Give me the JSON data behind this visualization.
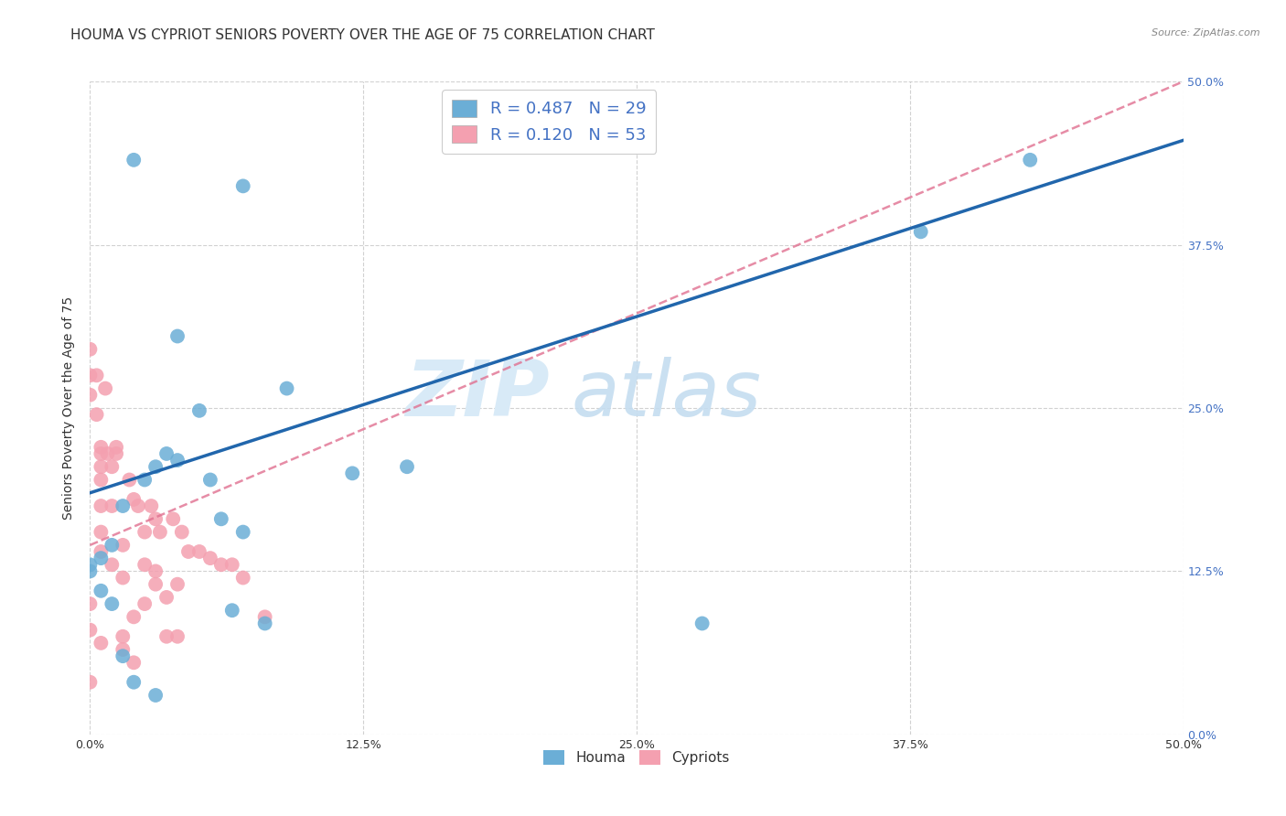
{
  "title": "HOUMA VS CYPRIOT SENIORS POVERTY OVER THE AGE OF 75 CORRELATION CHART",
  "source": "Source: ZipAtlas.com",
  "ylabel": "Seniors Poverty Over the Age of 75",
  "xlim": [
    0,
    0.5
  ],
  "ylim": [
    0,
    0.5
  ],
  "xticks": [
    0.0,
    0.125,
    0.25,
    0.375,
    0.5
  ],
  "yticks": [
    0.0,
    0.125,
    0.25,
    0.375,
    0.5
  ],
  "xtick_labels": [
    "0.0%",
    "12.5%",
    "25.0%",
    "37.5%",
    "50.0%"
  ],
  "ytick_labels": [
    "0.0%",
    "12.5%",
    "25.0%",
    "37.5%",
    "50.0%"
  ],
  "houma_color": "#6baed6",
  "cypriot_color": "#f4a0b0",
  "houma_line_color": "#2166ac",
  "cypriot_line_color": "#e07090",
  "houma_R": "0.487",
  "houma_N": "29",
  "cypriot_R": "0.120",
  "cypriot_N": "53",
  "houma_trend_x0": 0.0,
  "houma_trend_y0": 0.185,
  "houma_trend_x1": 0.5,
  "houma_trend_y1": 0.455,
  "cypriot_trend_x0": 0.0,
  "cypriot_trend_y0": 0.145,
  "cypriot_trend_x1": 0.5,
  "cypriot_trend_y1": 0.5,
  "houma_x": [
    0.02,
    0.07,
    0.04,
    0.09,
    0.05,
    0.035,
    0.04,
    0.03,
    0.055,
    0.025,
    0.015,
    0.01,
    0.005,
    0.0,
    0.0,
    0.005,
    0.01,
    0.065,
    0.08,
    0.12,
    0.145,
    0.28,
    0.38,
    0.43,
    0.06,
    0.07,
    0.015,
    0.02,
    0.03
  ],
  "houma_y": [
    0.44,
    0.42,
    0.305,
    0.265,
    0.248,
    0.215,
    0.21,
    0.205,
    0.195,
    0.195,
    0.175,
    0.145,
    0.135,
    0.13,
    0.125,
    0.11,
    0.1,
    0.095,
    0.085,
    0.2,
    0.205,
    0.085,
    0.385,
    0.44,
    0.165,
    0.155,
    0.06,
    0.04,
    0.03
  ],
  "cypriot_x": [
    0.0,
    0.0,
    0.0,
    0.0,
    0.0,
    0.0,
    0.003,
    0.003,
    0.005,
    0.005,
    0.005,
    0.005,
    0.005,
    0.005,
    0.005,
    0.005,
    0.007,
    0.008,
    0.01,
    0.01,
    0.01,
    0.012,
    0.012,
    0.015,
    0.015,
    0.015,
    0.015,
    0.018,
    0.02,
    0.02,
    0.02,
    0.022,
    0.025,
    0.025,
    0.025,
    0.028,
    0.03,
    0.03,
    0.03,
    0.032,
    0.035,
    0.035,
    0.038,
    0.04,
    0.04,
    0.042,
    0.045,
    0.05,
    0.055,
    0.06,
    0.065,
    0.07,
    0.08
  ],
  "cypriot_y": [
    0.295,
    0.275,
    0.26,
    0.1,
    0.08,
    0.04,
    0.275,
    0.245,
    0.22,
    0.215,
    0.205,
    0.195,
    0.175,
    0.155,
    0.14,
    0.07,
    0.265,
    0.215,
    0.205,
    0.175,
    0.13,
    0.22,
    0.215,
    0.145,
    0.12,
    0.075,
    0.065,
    0.195,
    0.18,
    0.09,
    0.055,
    0.175,
    0.155,
    0.13,
    0.1,
    0.175,
    0.125,
    0.165,
    0.115,
    0.155,
    0.105,
    0.075,
    0.165,
    0.115,
    0.075,
    0.155,
    0.14,
    0.14,
    0.135,
    0.13,
    0.13,
    0.12,
    0.09
  ],
  "background_color": "#ffffff",
  "grid_color": "#cccccc",
  "title_fontsize": 11,
  "axis_label_fontsize": 10,
  "tick_fontsize": 9,
  "legend_fontsize": 11,
  "right_tick_color": "#4472c4",
  "source_color": "#888888",
  "label_color": "#333333"
}
